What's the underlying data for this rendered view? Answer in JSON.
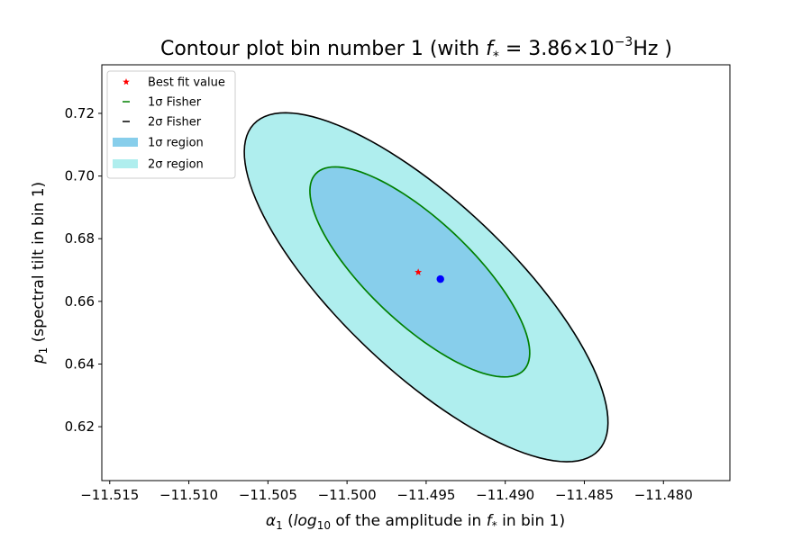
{
  "chart_data": {
    "type": "scatter",
    "title": "Contour plot bin number 1 (with f* = 3.86×10⁻³Hz )",
    "title_parts": {
      "prefix": "Contour plot bin number 1 (with ",
      "f_symbol": "f",
      "star": "*",
      "equals": " = 3.86×10",
      "exponent": "−3",
      "suffix": "Hz )"
    },
    "xlabel": "α₁ (log₁₀ of the amplitude in f* in bin 1)",
    "xlabel_parts": {
      "alpha": "α",
      "alpha_sub": "1",
      "open": " (",
      "log": "log",
      "log_sub": "10",
      "mid": " of the amplitude in ",
      "f": "f",
      "f_sub": "*",
      "end": " in bin 1)"
    },
    "ylabel": "p₁ (spectral tilt in bin 1)",
    "ylabel_parts": {
      "p": "p",
      "p_sub": "1",
      "rest": " (spectral tilt in bin 1)"
    },
    "xlim": [
      -11.5155,
      -11.4758
    ],
    "ylim": [
      0.6028,
      0.7355
    ],
    "xticks": [
      -11.515,
      -11.51,
      -11.505,
      -11.5,
      -11.495,
      -11.49,
      -11.485,
      -11.48
    ],
    "xtick_labels": [
      "−11.515",
      "−11.510",
      "−11.505",
      "−11.500",
      "−11.495",
      "−11.490",
      "−11.485",
      "−11.480"
    ],
    "yticks": [
      0.62,
      0.64,
      0.66,
      0.68,
      0.7,
      0.72
    ],
    "ytick_labels": [
      "0.62",
      "0.64",
      "0.66",
      "0.68",
      "0.70",
      "0.72"
    ],
    "grid": false,
    "legend_position": "upper-left",
    "legend": [
      {
        "label": "Best fit value",
        "marker": "star",
        "color": "#ff0000"
      },
      {
        "label": "1σ Fisher",
        "marker": "line",
        "color": "#008000"
      },
      {
        "label": "2σ Fisher",
        "marker": "line",
        "color": "#000000"
      },
      {
        "label": "1σ region",
        "marker": "patch",
        "color": "#87ceeb"
      },
      {
        "label": "2σ region",
        "marker": "patch",
        "color": "#afeeee"
      }
    ],
    "best_fit": {
      "x": -11.4955,
      "y": 0.6693,
      "color": "#ff0000"
    },
    "true_point": {
      "x": -11.4941,
      "y": 0.6671,
      "color": "#0000ff"
    },
    "regions": [
      {
        "name": "2σ region",
        "color": "#afeeee",
        "center": [
          -11.49495,
          0.66455
        ],
        "semi_major": [
          0.0102,
          -0.0544
        ],
        "semi_minor": [
          0.0053,
          0.0114
        ]
      },
      {
        "name": "1σ region",
        "color": "#87ceeb",
        "center": [
          -11.49537,
          0.66944
        ],
        "semi_major": [
          0.00613,
          -0.0327
        ],
        "semi_minor": [
          0.00322,
          0.0069
        ]
      }
    ],
    "fisher_ellipses": [
      {
        "name": "1σ Fisher",
        "color": "#008000",
        "center": [
          -11.4954,
          0.6694
        ],
        "semi_major": [
          0.00615,
          -0.0328
        ],
        "semi_minor": [
          0.00323,
          0.0069
        ]
      },
      {
        "name": "2σ Fisher",
        "color": "#000000",
        "center": [
          -11.495,
          0.6645
        ],
        "semi_major": [
          0.0102,
          -0.0545
        ],
        "semi_minor": [
          0.0053,
          0.0114
        ]
      }
    ]
  }
}
